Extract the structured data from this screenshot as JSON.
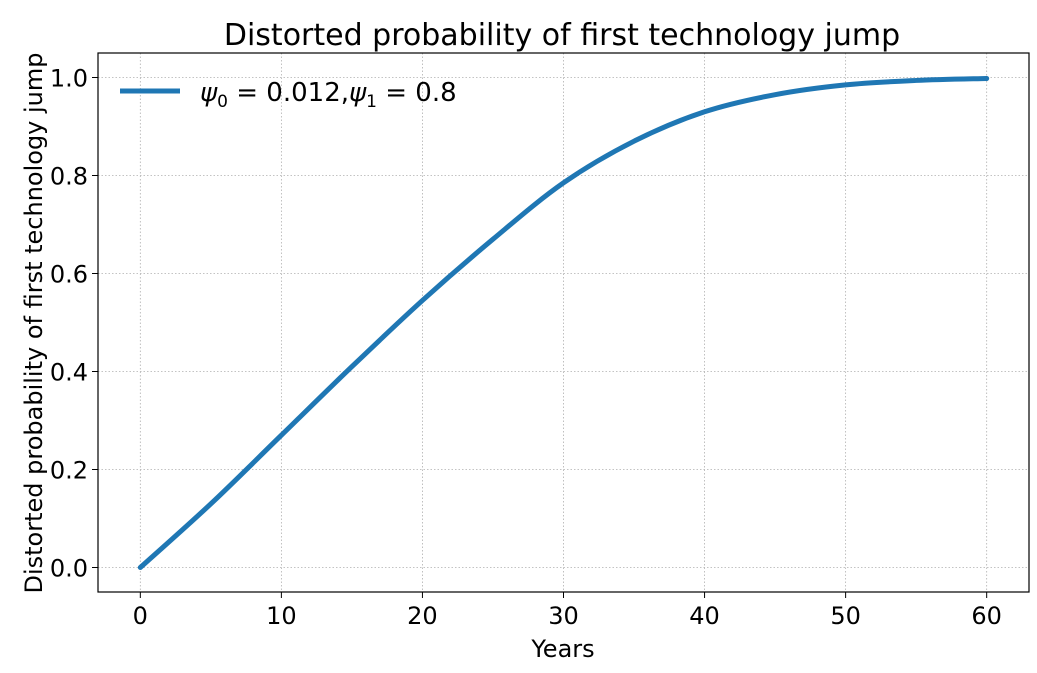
{
  "chart_data": {
    "type": "line",
    "title": "Distorted probability of first technology jump",
    "xlabel": "Years",
    "ylabel": "Distorted probability of first technology jump",
    "xlim": [
      -3,
      63
    ],
    "ylim": [
      -0.05,
      1.05
    ],
    "x_ticks": [
      0,
      10,
      20,
      30,
      40,
      50,
      60
    ],
    "y_ticks": [
      0.0,
      0.2,
      0.4,
      0.6,
      0.8,
      1.0
    ],
    "x_tick_labels": [
      "0",
      "10",
      "20",
      "30",
      "40",
      "50",
      "60"
    ],
    "y_tick_labels": [
      "0.0",
      "0.2",
      "0.4",
      "0.6",
      "0.8",
      "1.0"
    ],
    "grid": true,
    "legend_position": "top-left",
    "series": [
      {
        "legend": {
          "psi0_symbol": "ψ",
          "psi0_sub": "0",
          "psi0_value": " = 0.012,",
          "psi1_symbol": "ψ",
          "psi1_sub": "1",
          "psi1_value": " = 0.8"
        },
        "color": "#1f77b4",
        "x": [
          0,
          5,
          10,
          15,
          20,
          25,
          30,
          35,
          40,
          45,
          50,
          55,
          60
        ],
        "values": [
          0.0,
          0.13,
          0.27,
          0.41,
          0.545,
          0.67,
          0.785,
          0.87,
          0.93,
          0.965,
          0.985,
          0.994,
          0.998
        ]
      }
    ]
  }
}
